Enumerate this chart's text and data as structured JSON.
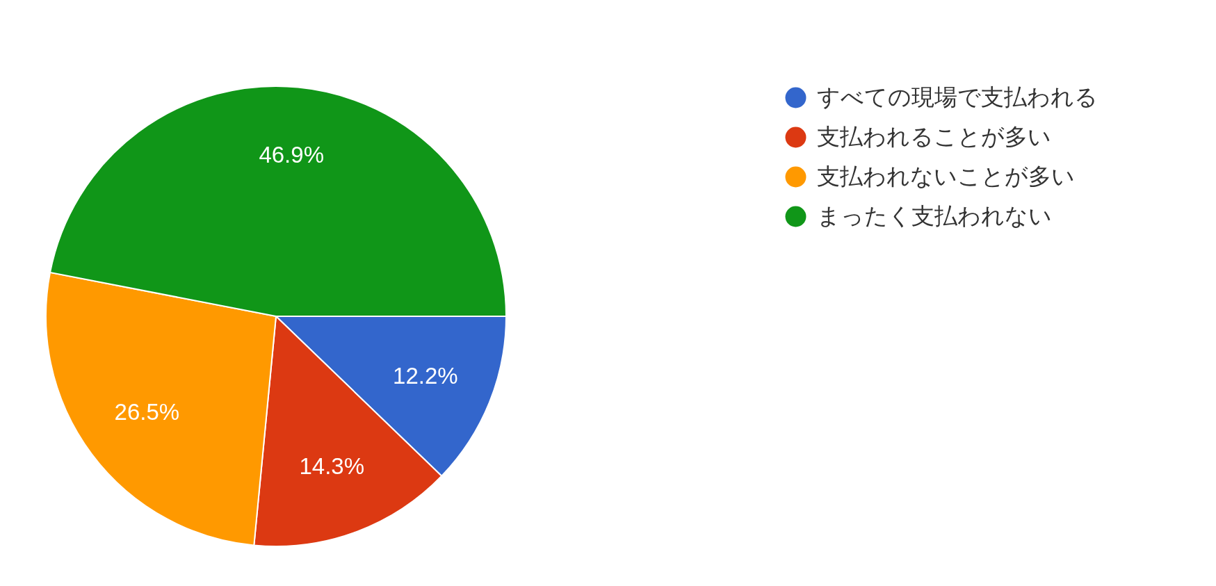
{
  "chart_data": {
    "type": "pie",
    "categories": [
      "すべての現場で支払われる",
      "支払われることが多い",
      "支払われないことが多い",
      "まったく支払われない"
    ],
    "values": [
      12.2,
      14.3,
      26.5,
      46.9
    ],
    "colors": [
      "#3366cc",
      "#dc3912",
      "#ff9900",
      "#109618"
    ],
    "value_labels": [
      "12.2%",
      "14.3%",
      "26.5%",
      "46.9%"
    ],
    "legend": "top right"
  }
}
